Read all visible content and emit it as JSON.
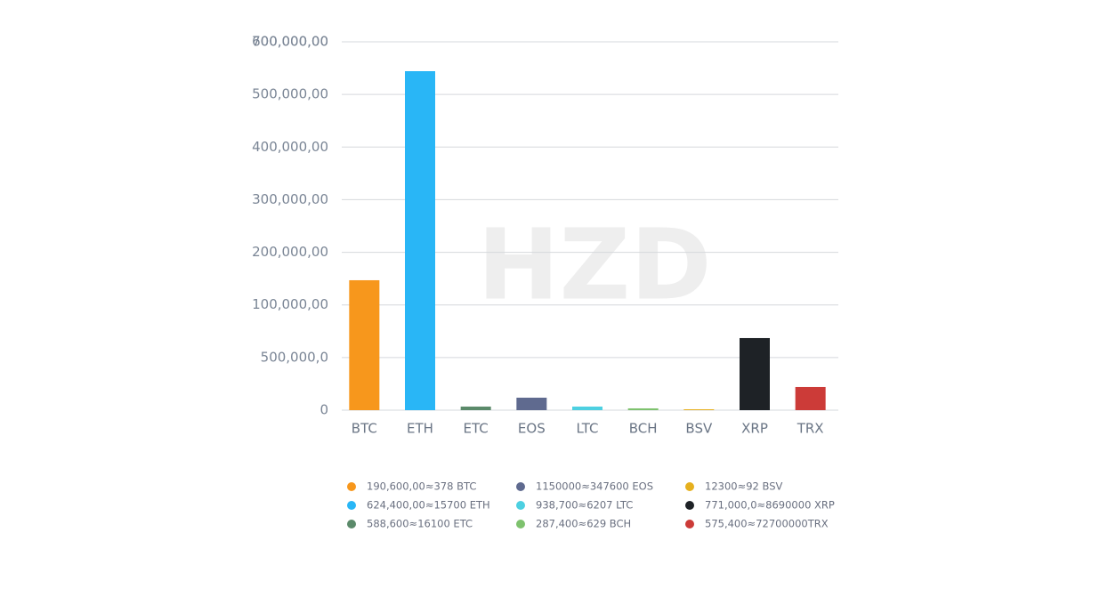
{
  "chart_data": {
    "type": "bar",
    "watermark": "HZD",
    "categories": [
      "BTC",
      "ETH",
      "ETC",
      "EOS",
      "LTC",
      "BCH",
      "BSV",
      "XRP",
      "TRX"
    ],
    "values": [
      246900,
      644200,
      6800,
      23700,
      6800,
      3400,
      1700,
      137000,
      44000
    ],
    "colors": [
      "#f7971c",
      "#29b6f6",
      "#5b8a6a",
      "#5f6a8f",
      "#4dd0e1",
      "#7ec26e",
      "#e6b01e",
      "#1e2226",
      "#cc3b38"
    ],
    "ylim": [
      0,
      700000
    ],
    "yticks": [
      0,
      {
        "value": 100000,
        "label": "500,000,0"
      },
      {
        "value": 200000,
        "label": "100,000,00"
      },
      {
        "value": 300000,
        "label": "200,000,00"
      },
      {
        "value": 400000,
        "label": "300,000,00"
      },
      {
        "value": 500000,
        "label": "400,000,00"
      },
      {
        "value": 600000,
        "label": "500,000,00"
      },
      {
        "value": 700000,
        "label": "600,000,00"
      }
    ],
    "top_label": "700,000,00",
    "grid": true,
    "legend": [
      "190,600,00≈378 BTC",
      "624,400,00≈15700 ETH",
      "588,600≈16100 ETC",
      "1150000≈347600 EOS",
      "938,700≈6207 LTC",
      "287,400≈629 BCH",
      "12300≈92 BSV",
      "771,000,0≈8690000 XRP",
      "575,400≈72700000TRX"
    ]
  }
}
